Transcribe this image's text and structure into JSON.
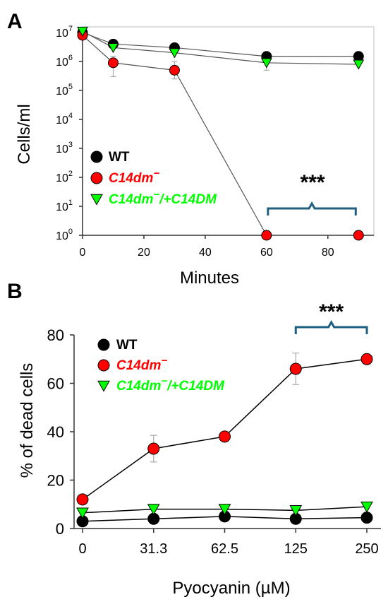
{
  "chart_data": [
    {
      "panel_label": "A",
      "type": "line",
      "ylabel": "Cells/ml",
      "xlabel": "Minutes",
      "y_scale": "log10",
      "ylim": [
        1,
        10000000
      ],
      "xlim": [
        0,
        95
      ],
      "xticks": [
        0,
        20,
        40,
        60,
        80
      ],
      "xtick_labels": [
        "0",
        "20",
        "40",
        "60",
        "80"
      ],
      "ytick_exponents": [
        0,
        1,
        2,
        3,
        4,
        5,
        6,
        7
      ],
      "ytick_base": "10",
      "legend_position": "bottom-left",
      "series": [
        {
          "name": "WT",
          "marker": "circle",
          "color": "#000000",
          "x": [
            0,
            10,
            30,
            60,
            90
          ],
          "y": [
            10000000,
            4000000,
            3000000,
            1500000,
            1500000
          ],
          "error": [
            null,
            null,
            null,
            null,
            null
          ]
        },
        {
          "name": "C14dm",
          "name_suffix": "−",
          "marker": "circle",
          "color": "#ff0000",
          "x": [
            0,
            10,
            30,
            60,
            90
          ],
          "y": [
            8000000,
            900000,
            500000,
            1,
            1
          ],
          "error_low": [
            null,
            300000,
            250000,
            null,
            null
          ],
          "error_high": [
            null,
            1500000,
            1000000,
            null,
            null
          ]
        },
        {
          "name_prefix": "C14dm",
          "name_mid": "−",
          "name": "/+C14DM",
          "marker": "triangle-down",
          "color": "#00ff00",
          "x": [
            0,
            10,
            30,
            60,
            90
          ],
          "y": [
            11000000,
            3000000,
            2000000,
            900000,
            800000
          ],
          "error_low": [
            null,
            null,
            null,
            500000,
            null
          ],
          "error_high": [
            null,
            null,
            null,
            1400000,
            null
          ]
        }
      ],
      "annotation": {
        "text": "***",
        "x_range": [
          60,
          90
        ]
      }
    },
    {
      "panel_label": "B",
      "type": "line",
      "ylabel": "% of dead cells",
      "xlabel": "Pyocyanin (µM)",
      "ylim": [
        0,
        80
      ],
      "yticks": [
        0,
        20,
        40,
        60,
        80
      ],
      "categories": [
        "0",
        "31.3",
        "62.5",
        "125",
        "250"
      ],
      "legend_position": "top-left",
      "series": [
        {
          "name": "WT",
          "marker": "circle",
          "color": "#000000",
          "values": [
            3,
            4,
            5,
            4,
            4.5
          ],
          "error": [
            0,
            0,
            0,
            0,
            0
          ]
        },
        {
          "name": "C14dm",
          "name_suffix": "−",
          "marker": "circle",
          "color": "#ff0000",
          "values": [
            12,
            33,
            38,
            66,
            70
          ],
          "error": [
            0,
            5.5,
            0,
            6.5,
            2
          ]
        },
        {
          "name_prefix": "C14dm",
          "name_mid": "−",
          "name": "/+C14DM",
          "marker": "triangle-down",
          "color": "#00ff00",
          "values": [
            6.5,
            8,
            8,
            7.5,
            9
          ],
          "error": [
            0,
            0,
            0,
            0,
            0
          ]
        }
      ],
      "annotation": {
        "text": "***",
        "x_range": [
          "125",
          "250"
        ]
      }
    }
  ],
  "colors": {
    "bracket": "#1f5f7f",
    "errorbar": "#aaaaaa",
    "line": "#555555",
    "axis": "#333333"
  }
}
